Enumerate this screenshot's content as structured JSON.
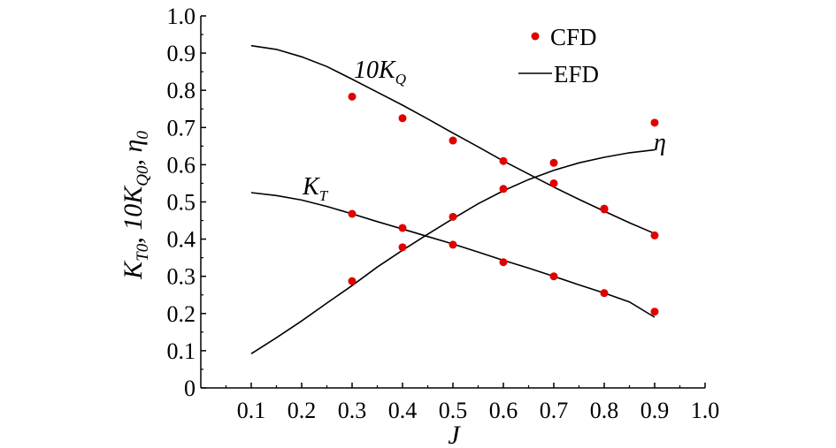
{
  "chart_data": {
    "type": "scatter",
    "xlabel": "J",
    "ylabel": {
      "parts": [
        {
          "text": "K",
          "sub": "T0"
        },
        {
          "text": ", 10K",
          "sub": "Q0"
        },
        {
          "text": ", η",
          "sub": "0"
        }
      ]
    },
    "xlim": [
      0.0,
      1.0
    ],
    "ylim": [
      0.0,
      1.0
    ],
    "x_ticks": [
      0.1,
      0.2,
      0.3,
      0.4,
      0.5,
      0.6,
      0.7,
      0.8,
      0.9,
      1.0
    ],
    "x_tick_labels": [
      "0.1",
      "0.2",
      "0.3",
      "0.4",
      "0.5",
      "0.6",
      "0.7",
      "0.8",
      "0.9",
      "1.0"
    ],
    "y_ticks": [
      0,
      0.1,
      0.2,
      0.3,
      0.4,
      0.5,
      0.6,
      0.7,
      0.8,
      0.9,
      1.0
    ],
    "y_tick_labels": [
      "0",
      "0.1",
      "0.2",
      "0.3",
      "0.4",
      "0.5",
      "0.6",
      "0.7",
      "0.8",
      "0.9",
      "1.0"
    ],
    "legend": {
      "position": "top-right",
      "entries": [
        {
          "label": "CFD",
          "marker": "dot",
          "color": "#e00000"
        },
        {
          "label": "EFD",
          "marker": "line",
          "color": "#000000"
        }
      ]
    },
    "series": [
      {
        "name": "10KQ",
        "label": {
          "main": "10K",
          "sub": "Q"
        },
        "efd": {
          "x": [
            0.1,
            0.15,
            0.2,
            0.25,
            0.3,
            0.35,
            0.4,
            0.45,
            0.5,
            0.55,
            0.6,
            0.65,
            0.7,
            0.75,
            0.8,
            0.85,
            0.9
          ],
          "y": [
            0.92,
            0.91,
            0.89,
            0.864,
            0.83,
            0.795,
            0.76,
            0.723,
            0.685,
            0.648,
            0.61,
            0.575,
            0.54,
            0.507,
            0.475,
            0.444,
            0.415
          ]
        },
        "cfd": {
          "x": [
            0.3,
            0.4,
            0.5,
            0.6,
            0.7,
            0.8,
            0.9
          ],
          "y": [
            0.783,
            0.725,
            0.665,
            0.61,
            0.55,
            0.48,
            0.41
          ]
        }
      },
      {
        "name": "KT",
        "label": {
          "main": "K",
          "sub": "T"
        },
        "efd": {
          "x": [
            0.1,
            0.15,
            0.2,
            0.25,
            0.3,
            0.35,
            0.4,
            0.45,
            0.5,
            0.55,
            0.6,
            0.65,
            0.7,
            0.75,
            0.8,
            0.85,
            0.9
          ],
          "y": [
            0.525,
            0.517,
            0.505,
            0.488,
            0.468,
            0.447,
            0.427,
            0.407,
            0.387,
            0.365,
            0.343,
            0.322,
            0.3,
            0.277,
            0.255,
            0.231,
            0.19
          ]
        },
        "cfd": {
          "x": [
            0.3,
            0.4,
            0.5,
            0.6,
            0.7,
            0.8,
            0.9
          ],
          "y": [
            0.468,
            0.43,
            0.385,
            0.338,
            0.3,
            0.255,
            0.205
          ]
        }
      },
      {
        "name": "eta",
        "label": {
          "main": "η",
          "sub": ""
        },
        "efd": {
          "x": [
            0.1,
            0.15,
            0.2,
            0.25,
            0.3,
            0.35,
            0.4,
            0.45,
            0.5,
            0.55,
            0.6,
            0.65,
            0.7,
            0.75,
            0.8,
            0.85,
            0.9
          ],
          "y": [
            0.092,
            0.135,
            0.18,
            0.228,
            0.275,
            0.325,
            0.37,
            0.413,
            0.455,
            0.495,
            0.53,
            0.56,
            0.585,
            0.605,
            0.62,
            0.632,
            0.64
          ]
        },
        "cfd": {
          "x": [
            0.3,
            0.4,
            0.5,
            0.6,
            0.7,
            0.8,
            0.9
          ],
          "y": [
            0.287,
            0.378,
            0.46,
            0.535,
            0.605,
            0.482,
            0.713
          ]
        }
      }
    ]
  }
}
